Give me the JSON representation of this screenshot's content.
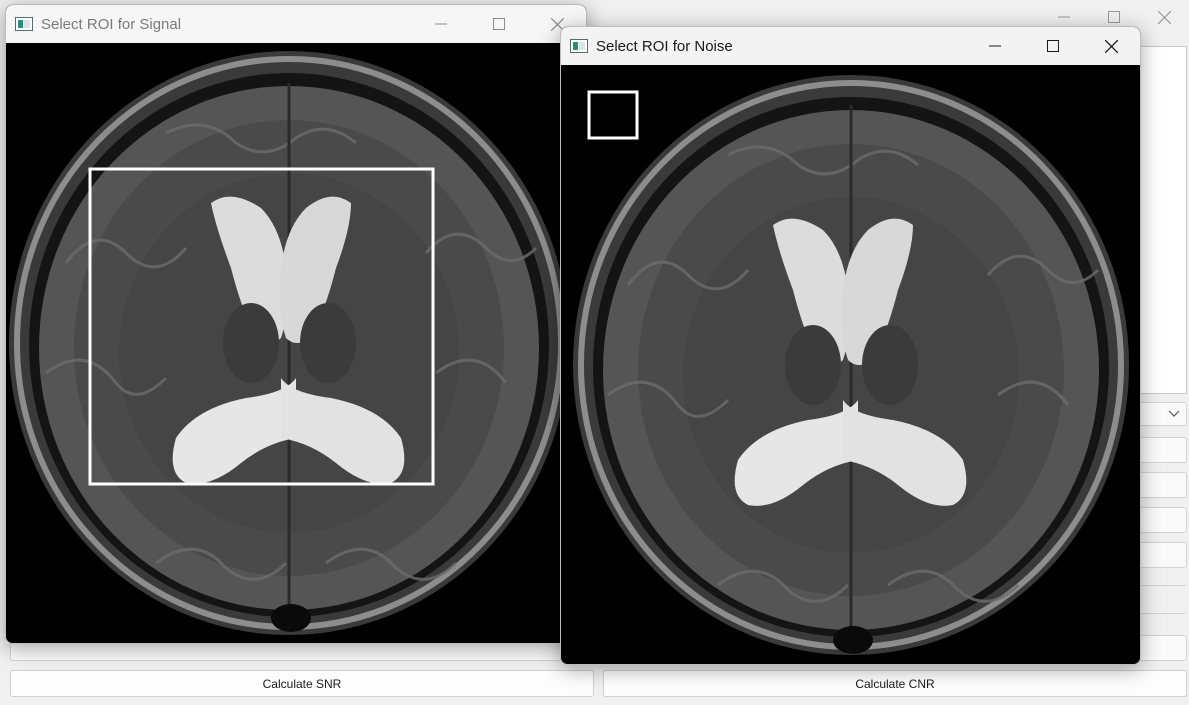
{
  "signal_window": {
    "title": "Select ROI for Signal"
  },
  "noise_window": {
    "title": "Select ROI for Noise"
  },
  "main_window": {
    "buttons": {
      "snr_label": "Calculate SNR",
      "cnr_label": "Calculate CNR"
    }
  },
  "icons": {
    "app": "app-window-icon",
    "minimize": "minimize-icon",
    "maximize": "maximize-icon",
    "close": "close-icon",
    "dropdown": "chevron-down-icon"
  },
  "colors": {
    "roi_box": "#ffffff",
    "titlebar": "#f3f3f3",
    "image_background": "#000000"
  }
}
